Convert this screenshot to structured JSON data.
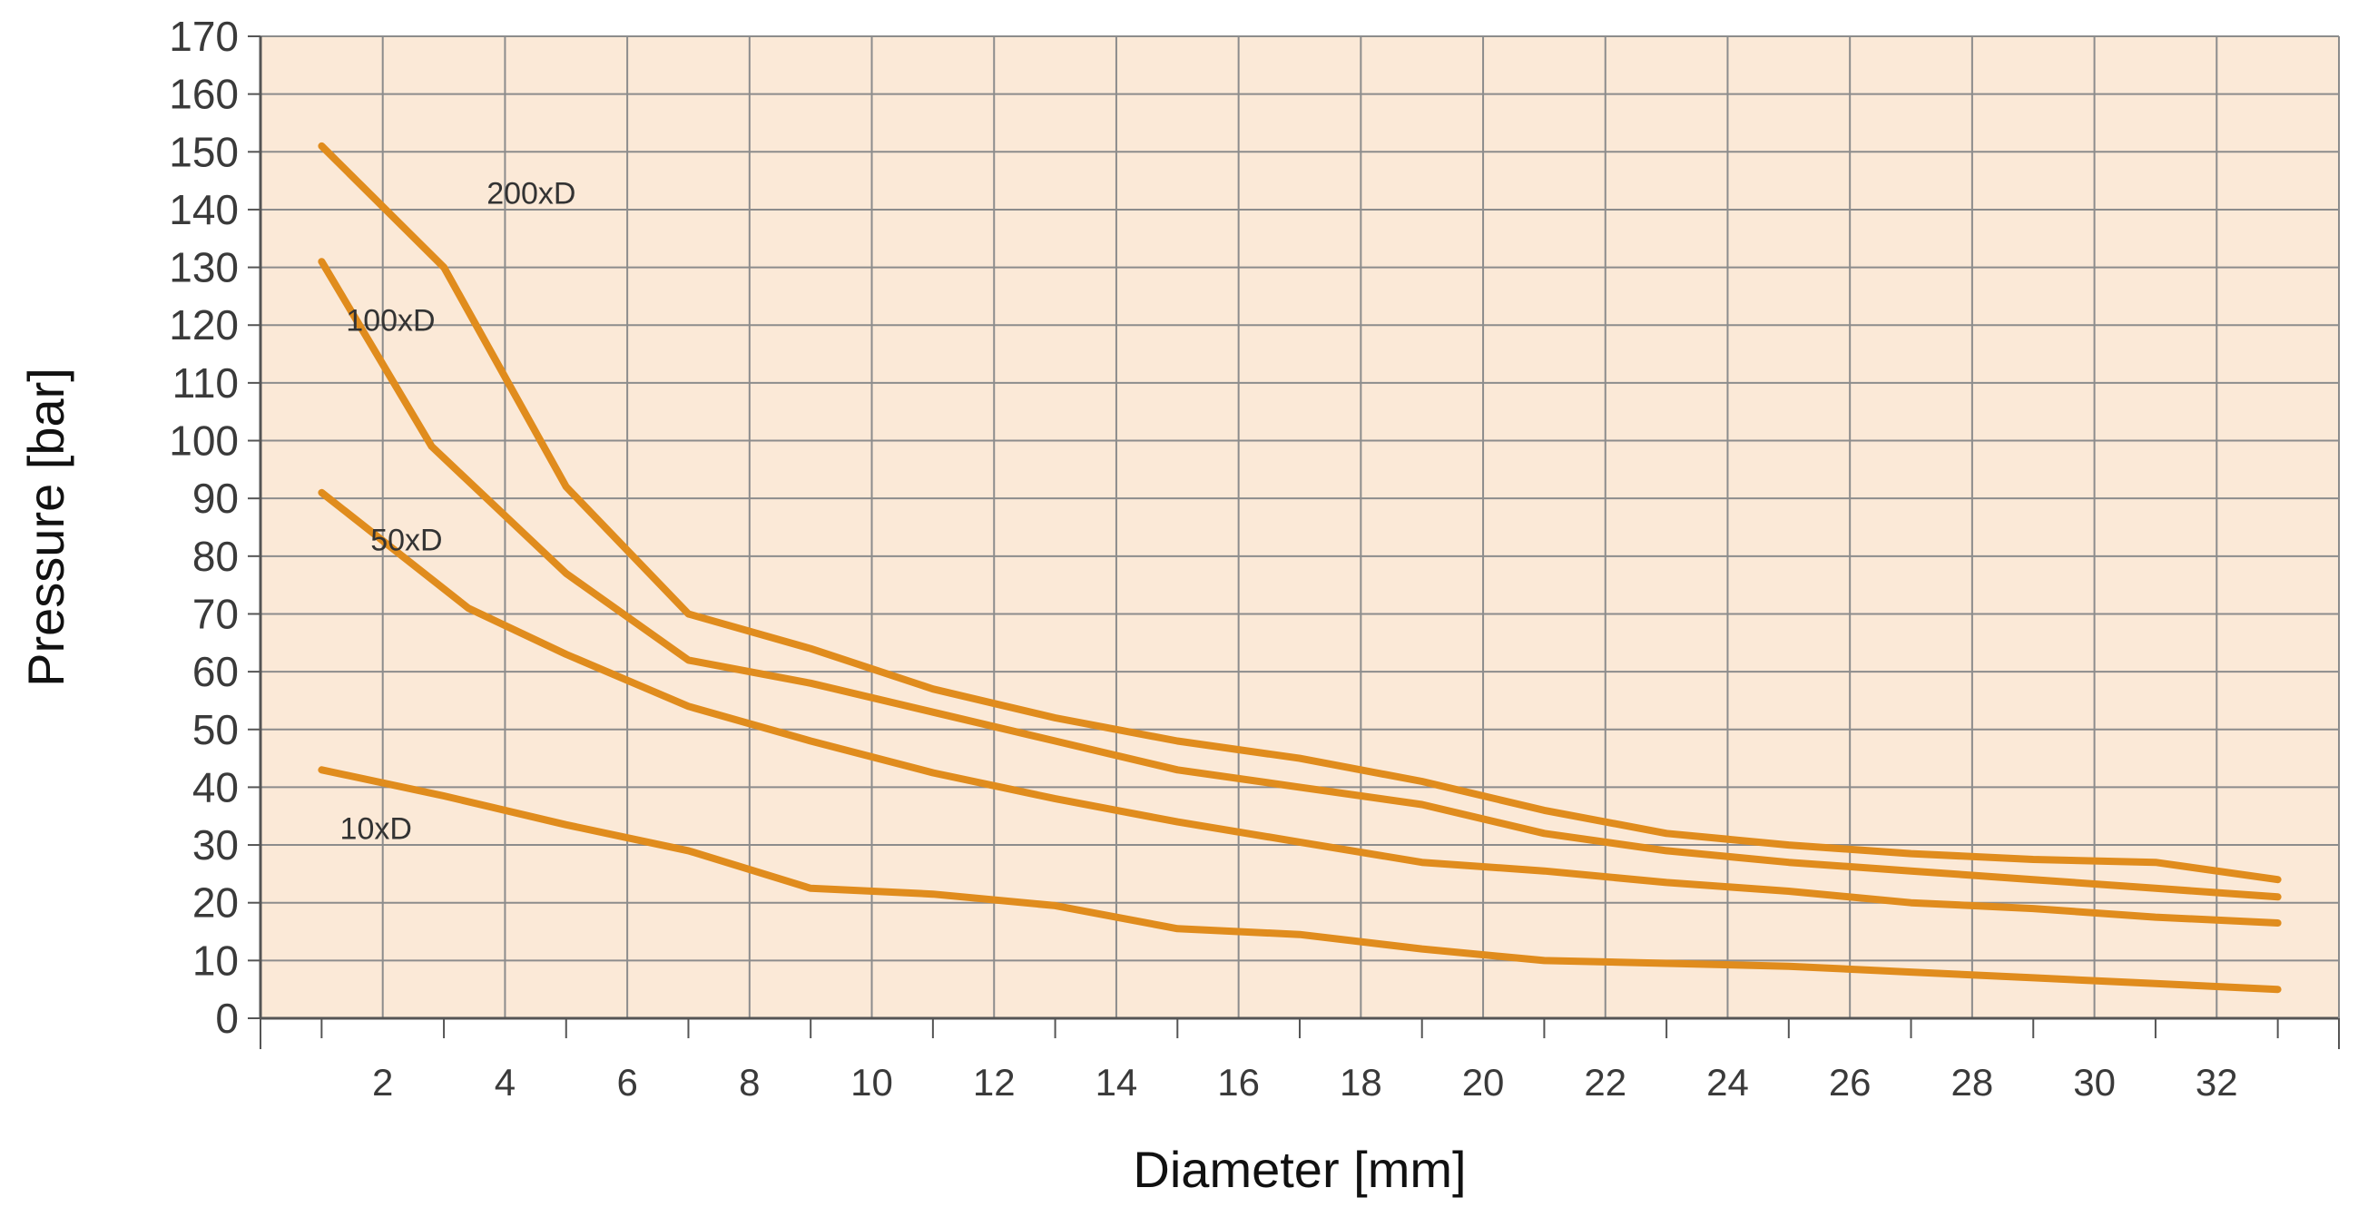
{
  "chart_data": {
    "type": "line",
    "title": "",
    "xlabel": "Diameter [mm]",
    "ylabel": "Pressure [bar]",
    "xlim": [
      0,
      34
    ],
    "ylim": [
      0,
      170
    ],
    "x_ticks": [
      "2",
      "4",
      "6",
      "8",
      "10",
      "12",
      "14",
      "16",
      "18",
      "20",
      "22",
      "24",
      "26",
      "28",
      "30",
      "32"
    ],
    "y_ticks": [
      "0",
      "10",
      "20",
      "30",
      "40",
      "50",
      "60",
      "70",
      "80",
      "90",
      "100",
      "110",
      "120",
      "130",
      "140",
      "150",
      "160",
      "170"
    ],
    "grid": true,
    "series": [
      {
        "name": "200xD",
        "x": [
          1,
          3,
          5,
          7,
          9,
          11,
          13,
          15,
          17,
          19,
          21,
          23,
          25,
          27,
          29,
          31,
          33
        ],
        "y": [
          151,
          130,
          92,
          70,
          64,
          57,
          52,
          48,
          45,
          41,
          36,
          32,
          30,
          28.5,
          27.5,
          27,
          24
        ]
      },
      {
        "name": "100xD",
        "x": [
          1,
          2.8,
          5,
          7,
          9,
          11,
          13,
          15,
          17,
          19,
          21,
          23,
          25,
          27,
          29,
          31,
          33
        ],
        "y": [
          131,
          99,
          77,
          62,
          58,
          53,
          48,
          43,
          40,
          37,
          32,
          29,
          27,
          25.5,
          24,
          22.5,
          21
        ]
      },
      {
        "name": "50xD",
        "x": [
          1,
          3.4,
          5,
          7,
          9,
          11,
          13,
          15,
          17,
          19,
          21,
          23,
          25,
          27,
          29,
          31,
          33
        ],
        "y": [
          91,
          71,
          63,
          54,
          48,
          42.5,
          38,
          34,
          30.5,
          27,
          25.5,
          23.5,
          22,
          20,
          19,
          17.5,
          16.5
        ]
      },
      {
        "name": "10xD",
        "x": [
          1,
          3,
          5,
          7,
          9,
          11,
          13,
          15,
          17,
          19,
          21,
          23,
          25,
          27,
          29,
          31,
          33
        ],
        "y": [
          43,
          38.5,
          33.5,
          29,
          22.5,
          21.5,
          19.5,
          15.5,
          14.5,
          12,
          10,
          9.5,
          9,
          8,
          7,
          6,
          5
        ]
      }
    ],
    "colors": {
      "plot_background": "#FBE9D7",
      "line": "#E08C1D",
      "grid": "#8C8C8C",
      "axis": "#555555"
    }
  }
}
